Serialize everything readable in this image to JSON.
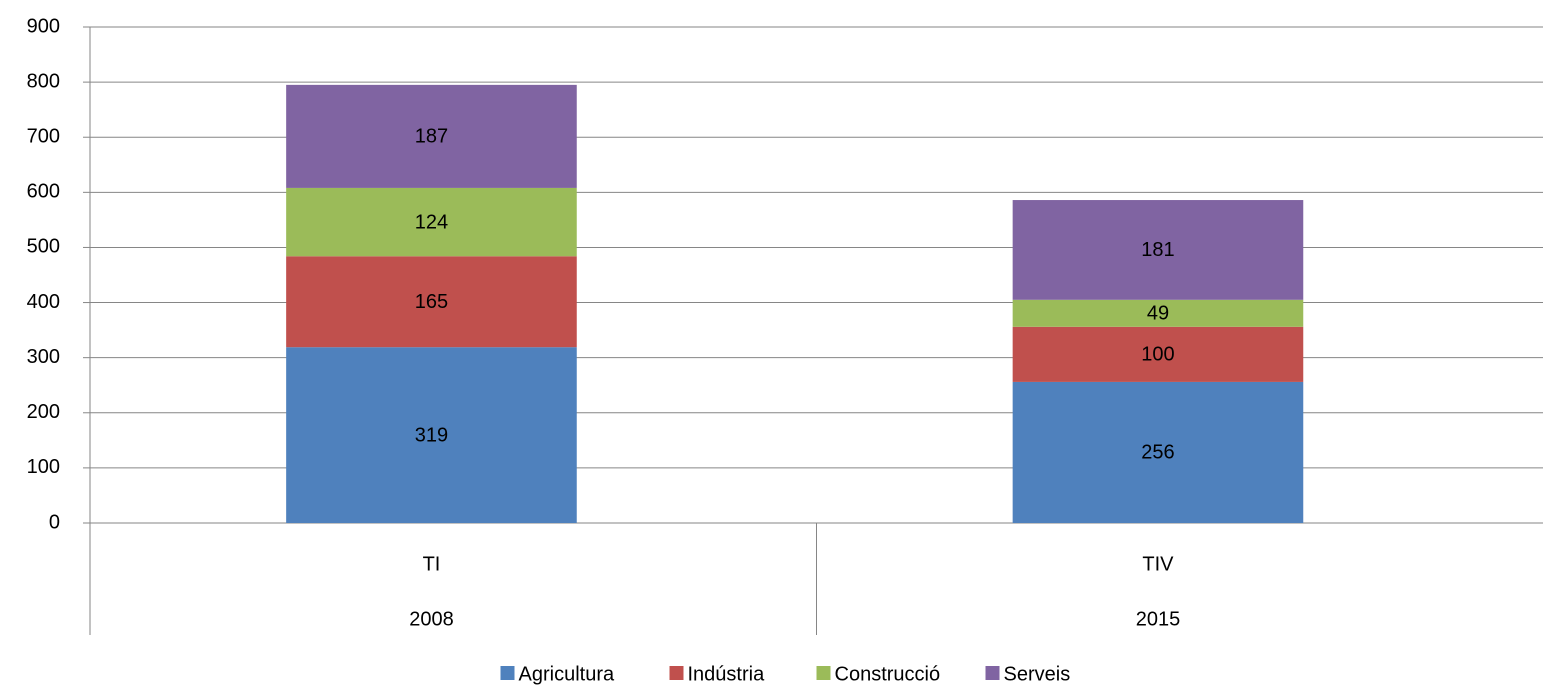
{
  "chart_data": {
    "type": "stacked_bar",
    "categories": [
      "TI",
      "TIV"
    ],
    "category_groups": [
      "2008",
      "2015"
    ],
    "series": [
      {
        "name": "Agricultura",
        "color": "#4f81bd",
        "values": [
          319,
          256
        ]
      },
      {
        "name": "Indústria",
        "color": "#c0504d",
        "values": [
          165,
          100
        ]
      },
      {
        "name": "Construcció",
        "color": "#9bbb59",
        "values": [
          124,
          49
        ]
      },
      {
        "name": "Serveis",
        "color": "#8064a2",
        "values": [
          187,
          181
        ]
      }
    ],
    "ylim": [
      0,
      900
    ],
    "yticks": [
      0,
      100,
      200,
      300,
      400,
      500,
      600,
      700,
      800,
      900
    ],
    "grid": true,
    "legend": "bottom",
    "data_labels": true
  }
}
